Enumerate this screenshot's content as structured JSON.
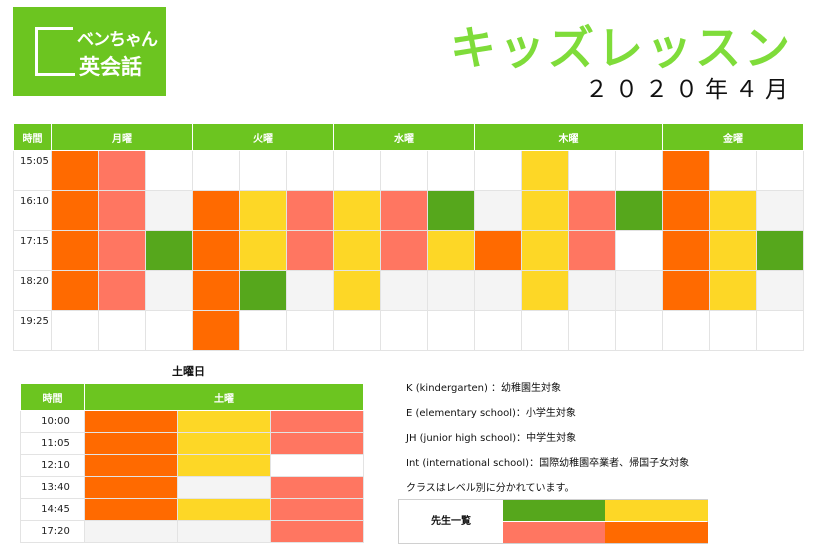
{
  "logo": {
    "line1": "ベンちゃん",
    "line2": "英会話"
  },
  "title": "キッズレッスン",
  "date": "２０２０年４月",
  "colors": {
    "orange": "#ff6a00",
    "salmon": "#ff7661",
    "green": "#56a71c",
    "yellow": "#fdd726",
    "light": "#f4f4f4",
    "white": "#ffffff",
    "header": "#6cc520",
    "title": "#7fdc3a"
  },
  "weekday": {
    "time_header": "時間",
    "days": [
      "月曜",
      "火曜",
      "水曜",
      "木曜",
      "金曜"
    ],
    "rows": [
      {
        "time": "15:05",
        "cells": [
          "o",
          "s",
          "w",
          "w",
          "w",
          "w",
          "w",
          "w",
          "w",
          "w",
          "y",
          "w",
          "w",
          "o",
          "w",
          "w"
        ]
      },
      {
        "time": "16:10",
        "cells": [
          "o",
          "s",
          "l",
          "o",
          "y",
          "s",
          "y",
          "s",
          "g",
          "l",
          "y",
          "s",
          "g",
          "o",
          "y",
          "l"
        ]
      },
      {
        "time": "17:15",
        "cells": [
          "o",
          "s",
          "g",
          "o",
          "y",
          "s",
          "y",
          "s",
          "y",
          "o",
          "y",
          "s",
          "w",
          "o",
          "y",
          "g"
        ]
      },
      {
        "time": "18:20",
        "cells": [
          "o",
          "s",
          "l",
          "o",
          "g",
          "l",
          "y",
          "l",
          "l",
          "l",
          "y",
          "l",
          "l",
          "o",
          "y",
          "l"
        ]
      },
      {
        "time": "19:25",
        "cells": [
          "w",
          "w",
          "w",
          "o",
          "w",
          "w",
          "w",
          "w",
          "w",
          "w",
          "w",
          "w",
          "w",
          "w",
          "w",
          "w"
        ]
      }
    ]
  },
  "saturday": {
    "caption": "土曜日",
    "time_header": "時間",
    "day": "土曜",
    "rows": [
      {
        "time": "10:00",
        "cells": [
          "o",
          "y",
          "s"
        ]
      },
      {
        "time": "11:05",
        "cells": [
          "o",
          "y",
          "s"
        ]
      },
      {
        "time": "12:10",
        "cells": [
          "o",
          "y",
          "w"
        ]
      },
      {
        "time": "13:40",
        "cells": [
          "o",
          "l",
          "s"
        ]
      },
      {
        "time": "14:45",
        "cells": [
          "o",
          "y",
          "s"
        ]
      },
      {
        "time": "17:20",
        "cells": [
          "l",
          "l",
          "s"
        ]
      }
    ]
  },
  "legend": [
    "K (kindergarten) ：幼稚園生対象",
    "E (elementary school)：小学生対象",
    "JH (junior high school)：中学生対象",
    "Int (international school)：国際幼稚園卒業者、帰国子女対象",
    "クラスはレベル別に分かれています。"
  ],
  "teachers": {
    "label": "先生一覧",
    "colors": [
      "g",
      "y",
      "s",
      "o"
    ]
  }
}
